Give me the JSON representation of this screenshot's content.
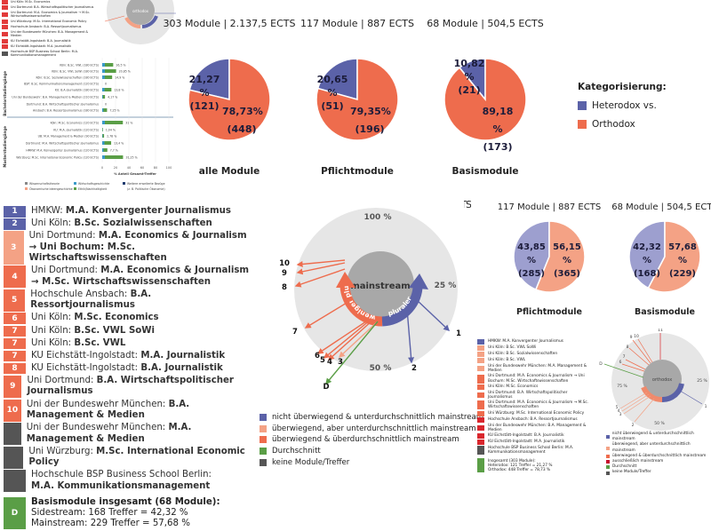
{
  "colors": {
    "heterodox": "#5b62a8",
    "orthodox": "#ee6c4d",
    "heterodox_light": "#9d9fcf",
    "orthodox_light": "#f4a285",
    "mainstream_light": "#f4a285",
    "green": "#5a9e46",
    "gray": "#555555",
    "ring": "#e6e6e6",
    "inner": "#a8a8a8"
  },
  "chart_data": [
    {
      "type": "pie",
      "title": "303 Module | 2.137,5 ECTS",
      "caption": "alle Module",
      "slices": [
        {
          "label": "Heterodox",
          "value": 21.27,
          "count": 121,
          "pct": "21,27 %",
          "cnt": "(121)"
        },
        {
          "label": "Orthodox",
          "value": 78.73,
          "count": 448,
          "pct": "78,73%",
          "cnt": "(448)"
        }
      ]
    },
    {
      "type": "pie",
      "title": "117 Module | 887 ECTS",
      "caption": "Pflichtmodule",
      "slices": [
        {
          "label": "Heterodox",
          "value": 20.65,
          "count": 51,
          "pct": "20,65 %",
          "cnt": "(51)"
        },
        {
          "label": "Orthodox",
          "value": 79.35,
          "count": 196,
          "pct": "79,35%",
          "cnt": "(196)"
        }
      ]
    },
    {
      "type": "pie",
      "title": "68 Module | 504,5 ECTS",
      "caption": "Basismodule",
      "slices": [
        {
          "label": "Heterodox",
          "value": 10.82,
          "count": 21,
          "pct": "10,82 %",
          "cnt": "(21)"
        },
        {
          "label": "Orthodox",
          "value": 89.18,
          "count": 173,
          "pct": "89,18 %",
          "cnt": "(173)"
        }
      ]
    },
    {
      "type": "pie",
      "title": "117 Module | 887 ECTS",
      "caption": "Pflichtmodule",
      "slices": [
        {
          "label": "Sidestream",
          "value": 43.85,
          "count": 285,
          "pct": "43,85 %",
          "cnt": "(285)"
        },
        {
          "label": "Mainstream",
          "value": 56.15,
          "count": 365,
          "pct": "56,15 %",
          "cnt": "(365)"
        }
      ]
    },
    {
      "type": "pie",
      "title": "68 Module | 504,5 ECTS",
      "caption": "Basismodule",
      "slices": [
        {
          "label": "Sidestream",
          "value": 42.32,
          "count": 168,
          "pct": "42,32 %",
          "cnt": "(168)"
        },
        {
          "label": "Mainstream",
          "value": 57.68,
          "count": 229,
          "pct": "57,68 %",
          "cnt": "(229)"
        }
      ]
    },
    {
      "type": "bar",
      "xlabel": "% Anteil Gesamt-Treffer",
      "xlim": [
        0,
        100
      ],
      "xticks": [
        "0",
        "20",
        "40",
        "60",
        "80",
        "100"
      ],
      "categories": [
        "Köln: B.Sc. VWL (180 ECTS)",
        "Köln: B.Sc. VWL SoWi (180 ECTS)",
        "Köln: B.Sc. Sozialwissenschaften (180 ECTS)",
        "BSP: B.Sc. Kommunikationsmanagement (120 ECTS)",
        "KU: B.A Journalistik (180 ECTS)",
        "Uni der Bundeswehr: B.A. Management & Medien (210 ECTS)",
        "Dortmund: B.A. Wirtschaftspolitischer Journalismus",
        "Ansbach: B.A. Ressortjournalismus (180 ECTS)",
        "Köln: M.Sc. Economics (120 ECTS)",
        "KU: M.A. Journalistik (120 ECTS)",
        "UB: M.A. Management & Medien (90 ECTS)",
        "Dortmund: M.A. Wirtschaftspolitischer Journalismus",
        "HMKW: M.A. Konvergenter Journalismus (120 ECTS)",
        "Würzburg: M.Sc. International Economic Policy (120 ECTS)"
      ],
      "values": [
        16.5,
        20.85,
        14.9,
        0,
        13.8,
        4.17,
        0,
        7.25,
        31,
        1.04,
        2.78,
        13.4,
        7.7,
        31.25
      ],
      "value_labels": [
        "16,5 %",
        "20,85 %",
        "14,9 %",
        "0",
        "13,8 %",
        "4,17 %",
        "0",
        "7,25 %",
        "31 %",
        "1,04 %",
        "2,78 %",
        "13,4 %",
        "7,7 %",
        "31,25 %"
      ],
      "legend": [
        "Wissenschaftstheorie",
        "Wirtschaftsgeschichte",
        "Weitere erweiterte Bezüge",
        "Ökonomische Ideengeschichte",
        "Ethik/Nachhaltigkeit",
        "(z. B. Politische Ökonomie)"
      ]
    }
  ],
  "legend_top": {
    "title": "Kategorisierung:",
    "items": [
      "Heterodox vs.",
      "Orthodox"
    ]
  },
  "cut_title": "TS",
  "programs": [
    {
      "n": "1",
      "cat": "blue",
      "pre": "HMKW: ",
      "bold": "M.A. Konvergenter Journalismus"
    },
    {
      "n": "2",
      "cat": "blue",
      "pre": "Uni Köln: ",
      "bold": "B.Sc. Sozialwissenschaften"
    },
    {
      "n": "3",
      "cat": "light",
      "pre": "Uni Dortmund: ",
      "bold": "M.A. Economics & Journalism",
      "line2": "→ Uni Bochum: M.Sc. Wirtschaftswissenschaften"
    },
    {
      "n": "4",
      "cat": "orange",
      "pre": "Uni Dortmund: ",
      "bold": "M.A. Economics & Journalism",
      "line2": "→ M.Sc. Wirtschaftswissenschaften"
    },
    {
      "n": "5",
      "cat": "orange",
      "pre": "Hochschule Ansbach: ",
      "bold": "B.A. Ressortjournalismus"
    },
    {
      "n": "6",
      "cat": "orange",
      "pre": "Uni Köln: ",
      "bold": "M.Sc. Economics"
    },
    {
      "n": "7",
      "cat": "orange",
      "pre": "Uni Köln: ",
      "bold": "B.Sc. VWL SoWi"
    },
    {
      "n": "7",
      "cat": "orange",
      "pre": "Uni Köln: ",
      "bold": "B.Sc. VWL"
    },
    {
      "n": "7",
      "cat": "orange",
      "pre": "KU Eichstätt-Ingolstadt: ",
      "bold": "M.A. Journalistik"
    },
    {
      "n": "8",
      "cat": "orange",
      "pre": "KU Eichstätt-Ingolstadt: ",
      "bold": "B.A. Journalistik"
    },
    {
      "n": "9",
      "cat": "orange",
      "pre": "Uni Dortmund: ",
      "bold": "B.A. Wirtschaftspolitischer Journalismus"
    },
    {
      "n": "10",
      "cat": "orange",
      "pre": "Uni der Bundeswehr München: ",
      "bold": "B.A. Management & Medien"
    },
    {
      "n": "",
      "cat": "gray",
      "pre": "Uni der Bundeswehr München: ",
      "bold": "M.A. Management & Medien"
    },
    {
      "n": "",
      "cat": "gray",
      "pre": "Uni Würzburg: ",
      "bold": "M.Sc. International Economic Policy"
    },
    {
      "n": "",
      "cat": "gray",
      "pre": "Hochschule BSP Business School Berlin:",
      "line2": "M.A. Kommunikationsmanagement"
    }
  ],
  "summary": {
    "n": "D",
    "title": "Basismodule insgesamt (68 Module):",
    "line1": "Sidestream: 168 Treffer = 42,32 %",
    "line2": "Mainstream: 229 Treffer = 57,68 %"
  },
  "ring": {
    "center": "mainstream",
    "left_arc": "weniger plural",
    "right_arc": "pluraler",
    "p100": "100 %",
    "p25": "25 %",
    "p50": "50 %",
    "arrows": [
      {
        "label": "10",
        "cat": "orange"
      },
      {
        "label": "9",
        "cat": "orange"
      },
      {
        "label": "8",
        "cat": "orange"
      },
      {
        "label": "7",
        "cat": "orange"
      },
      {
        "label": "6",
        "cat": "orange"
      },
      {
        "label": "5",
        "cat": "orange"
      },
      {
        "label": "4",
        "cat": "orange"
      },
      {
        "label": "3",
        "cat": "light"
      },
      {
        "label": "D",
        "cat": "green"
      },
      {
        "label": "2",
        "cat": "blue"
      },
      {
        "label": "1",
        "cat": "blue"
      }
    ]
  },
  "ring_legend": [
    "nicht überwiegend & unterdurchschnittlich mainstream",
    "überwiegend, aber unterdurchschnittlich mainstream",
    "überwiegend & überdurchschnittlich mainstream",
    "Durchschnitt",
    "keine Module/Treffer"
  ],
  "small_list": [
    {
      "n": "1",
      "cat": "blue",
      "t": "HMKW: M.A. Konvergenter Journalismus"
    },
    {
      "n": "2",
      "cat": "light",
      "t": "Uni Köln: B.Sc. VWL SoWi"
    },
    {
      "n": "3",
      "cat": "light",
      "t": "Uni Köln: B.Sc. Sozialwissenschaften"
    },
    {
      "n": "4",
      "cat": "light",
      "t": "Uni Köln: B.Sc. VWL"
    },
    {
      "n": "5",
      "cat": "light",
      "t": "Uni der Bundeswehr München: M.A. Management & Medien"
    },
    {
      "n": "6",
      "cat": "orange",
      "t": "Uni Dortmund: M.A. Economics & Journalism → Uni Bochum: M.Sc. Wirtschaftswissenschaften"
    },
    {
      "n": "7",
      "cat": "orange",
      "t": "Uni Köln: M.Sc. Economics"
    },
    {
      "n": "8",
      "cat": "orange",
      "t": "Uni Dortmund: B.A. Wirtschaftspolitischer Journalismus"
    },
    {
      "n": "9",
      "cat": "orange",
      "t": "Uni Dortmund: M.A. Economics & Journalism → M.Sc. Wirtschaftswissenschaften"
    },
    {
      "n": "10",
      "cat": "orange",
      "t": "Uni Würzburg: M.Sc. International Economic Policy"
    },
    {
      "n": "11",
      "cat": "red",
      "t": "Hochschule Ansbach: B.A. Ressortjournalismus"
    },
    {
      "n": "12",
      "cat": "red",
      "t": "Uni der Bundeswehr München: B.A. Management & Medien"
    },
    {
      "n": "13",
      "cat": "red",
      "t": "KU Eichstätt-Ingolstadt: B.A. Journalistik"
    },
    {
      "n": "14",
      "cat": "red",
      "t": "KU Eichstätt-Ingolstadt: M.A. Journalistik"
    },
    {
      "n": "",
      "cat": "gray",
      "t": "Hochschule BSP Business School Berlin: M.A. Kommunikationsmanagement"
    }
  ],
  "small_summary": {
    "n": "D",
    "title": "Insgesamt (303 Module):",
    "line1": "Heterodox: 121 Treffer = 21,27 %",
    "line2": "Orthodox: 448 Treffer = 78,73 %"
  },
  "small_ring": {
    "center": "orthodox",
    "p25": "25 %",
    "p75": "75 %",
    "p50": "50 %",
    "labels": [
      "11",
      "10",
      "9",
      "8",
      "7",
      "6",
      "D",
      "5",
      "4",
      "3",
      "2",
      "1"
    ]
  },
  "small_ring_legend": [
    "nicht überwiegend & unterdurchschnittlich mainstream",
    "überwiegend, aber unterdurchschnittlich mainstream",
    "überwiegend & überdurchschnittlich mainstream",
    "ausschließlich mainstream",
    "Durchschnitt",
    "keine Module/Treffer"
  ],
  "thumb": {
    "center": "orthodox",
    "p25": "25 %",
    "p50": "50 %",
    "side1": "Bachelorstudiengänge",
    "side2": "Masterstudiengänge"
  }
}
